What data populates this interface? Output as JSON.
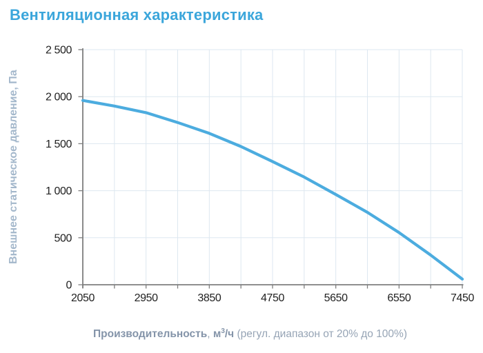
{
  "title": {
    "text": "Вентиляционная характеристика"
  },
  "yaxis_title": "Внешнее статическое давление, Па",
  "xaxis_title": {
    "name_bold": "Производительность",
    "separator": ", ",
    "unit_base": "м",
    "unit_sup": "3",
    "unit_rest": "/ч",
    "note": " (регул. диапазон от 20% до 100%)"
  },
  "chart_data": {
    "type": "line",
    "title": "Вентиляционная характеристика",
    "xlabel": "Производительность, м3/ч (регул. диапазон от 20% до 100%)",
    "ylabel": "Внешнее статическое давление, Па",
    "xlim": [
      2050,
      7450
    ],
    "ylim": [
      0,
      2500
    ],
    "x_major_ticks": [
      2050,
      2950,
      3850,
      4750,
      5650,
      6550,
      7450
    ],
    "x_tick_labels": [
      "2050",
      "2950",
      "3850",
      "4750",
      "5650",
      "6550",
      "7450"
    ],
    "x_minor_step": 450,
    "y_ticks": [
      0,
      500,
      1000,
      1500,
      2000,
      2500
    ],
    "y_tick_labels": [
      "0",
      "500",
      "1 000",
      "1 500",
      "2 000",
      "2 500"
    ],
    "grid": true,
    "legend": "none",
    "series": [
      {
        "name": "fan-curve",
        "x": [
          2050,
          2500,
          2950,
          3400,
          3850,
          4300,
          4750,
          5200,
          5650,
          6100,
          6550,
          7000,
          7450
        ],
        "y": [
          1960,
          1900,
          1830,
          1725,
          1610,
          1470,
          1310,
          1145,
          960,
          770,
          555,
          315,
          60
        ],
        "color": "#4CACDF"
      }
    ]
  },
  "colors": {
    "title_blue": "#3BA6DB",
    "curve_blue": "#4CACDF",
    "grid_line": "#DDE7F0",
    "axis_line": "#7E7E7E",
    "tick_text": "#212121",
    "y_axis_title": "#A3B7CB",
    "x_axis_title": "#8E9EB1",
    "background": "#FFFFFF"
  }
}
